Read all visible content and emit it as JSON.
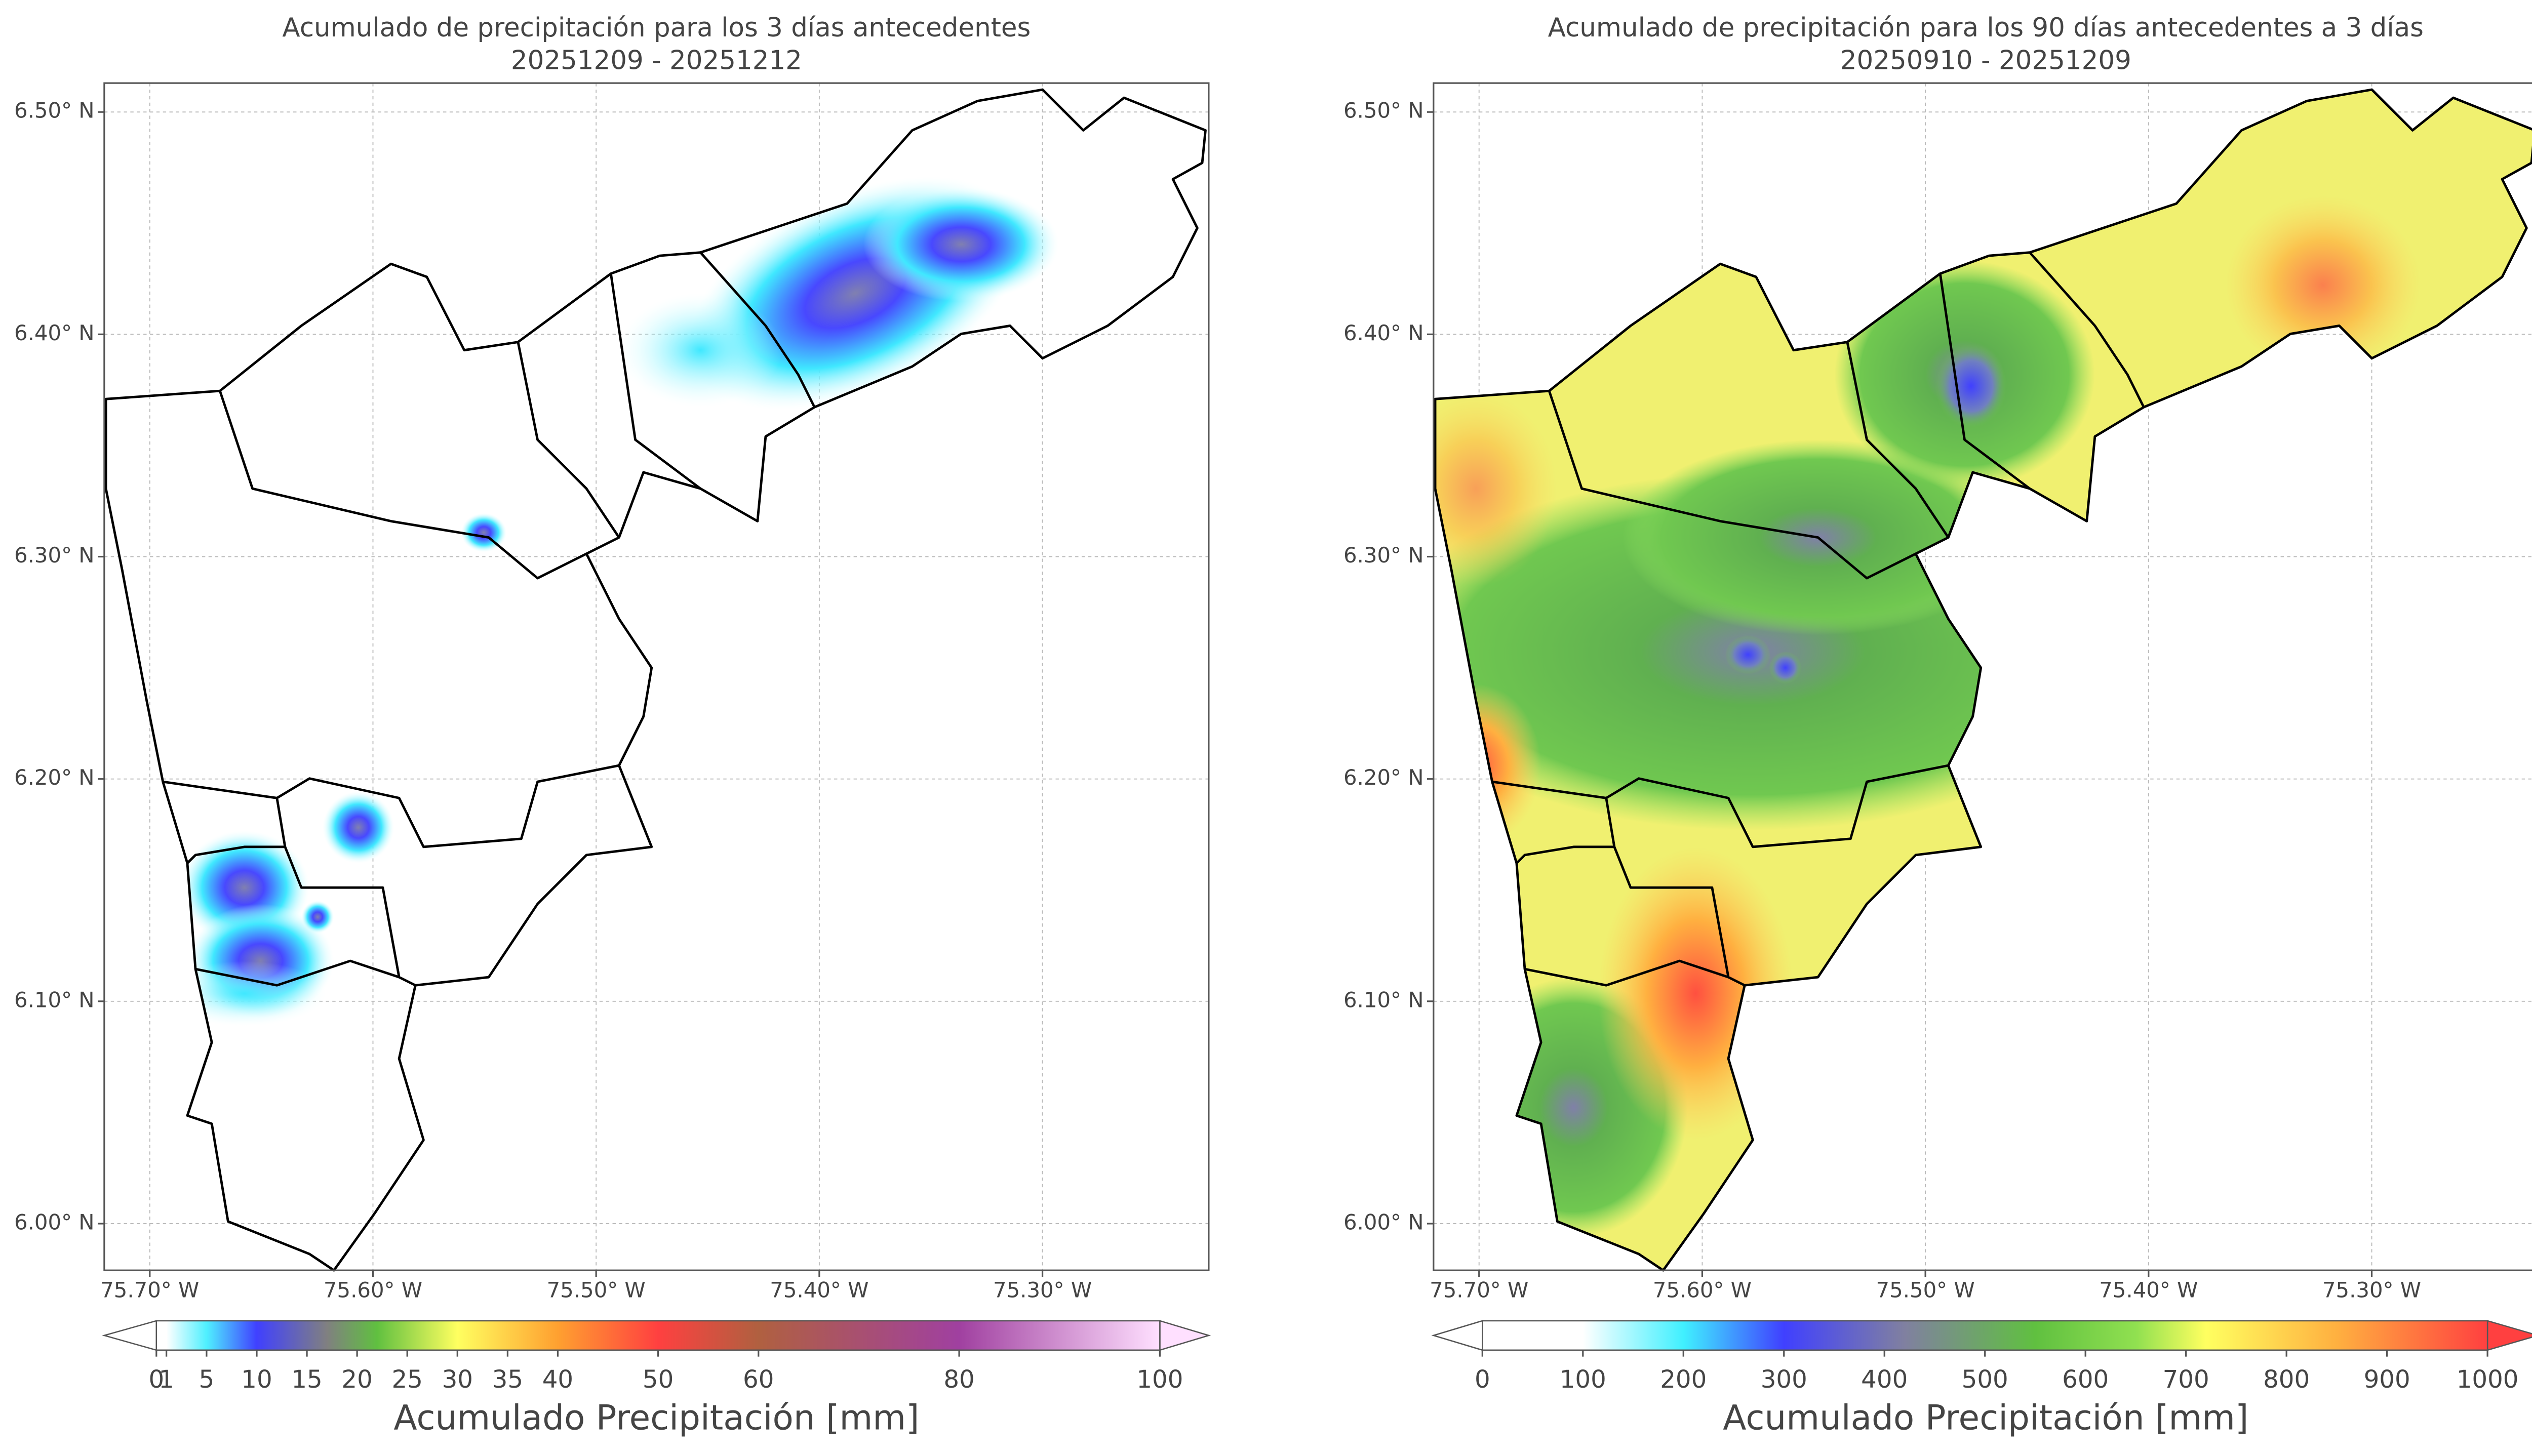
{
  "chart_data": [
    {
      "type": "map",
      "title": "Acumulado de precipitación para los 3 días antecedentes",
      "subtitle": "20251209 - 20251212",
      "xlim": [
        -75.7204,
        -75.2255
      ],
      "ylim": [
        5.979,
        6.513
      ],
      "grid": true,
      "xticks": [
        {
          "value": -75.7,
          "label": "75.70° W"
        },
        {
          "value": -75.6,
          "label": "75.60° W"
        },
        {
          "value": -75.5,
          "label": "75.50° W"
        },
        {
          "value": -75.4,
          "label": "75.40° W"
        },
        {
          "value": -75.3,
          "label": "75.30° W"
        }
      ],
      "yticks": [
        {
          "value": 6.0,
          "label": "6.00° N"
        },
        {
          "value": 6.1,
          "label": "6.10° N"
        },
        {
          "value": 6.2,
          "label": "6.20° N"
        },
        {
          "value": 6.3,
          "label": "6.30° N"
        },
        {
          "value": 6.4,
          "label": "6.40° N"
        },
        {
          "value": 6.5,
          "label": "6.50° N"
        }
      ],
      "colorbar": {
        "label": "Acumulado Precipitación [mm]",
        "lim": [
          0,
          100
        ],
        "ticks": [
          0,
          1,
          5,
          10,
          15,
          20,
          25,
          30,
          35,
          40,
          50,
          60,
          80,
          100
        ]
      }
    },
    {
      "type": "map",
      "title": "Acumulado de precipitación para los 90 días antecedentes a 3 días",
      "subtitle": "20250910 - 20251209",
      "xlim": [
        -75.7204,
        -75.2255
      ],
      "ylim": [
        5.979,
        6.513
      ],
      "grid": true,
      "xticks": [
        {
          "value": -75.7,
          "label": "75.70° W"
        },
        {
          "value": -75.6,
          "label": "75.60° W"
        },
        {
          "value": -75.5,
          "label": "75.50° W"
        },
        {
          "value": -75.4,
          "label": "75.40° W"
        },
        {
          "value": -75.3,
          "label": "75.30° W"
        }
      ],
      "yticks": [
        {
          "value": 6.0,
          "label": "6.00° N"
        },
        {
          "value": 6.1,
          "label": "6.10° N"
        },
        {
          "value": 6.2,
          "label": "6.20° N"
        },
        {
          "value": 6.3,
          "label": "6.30° N"
        },
        {
          "value": 6.4,
          "label": "6.40° N"
        },
        {
          "value": 6.5,
          "label": "6.50° N"
        }
      ],
      "colorbar": {
        "label": "Acumulado Precipitación [mm]",
        "lim": [
          0,
          1000
        ],
        "ticks": [
          0,
          100,
          200,
          300,
          400,
          500,
          600,
          700,
          800,
          900,
          1000
        ]
      }
    }
  ]
}
